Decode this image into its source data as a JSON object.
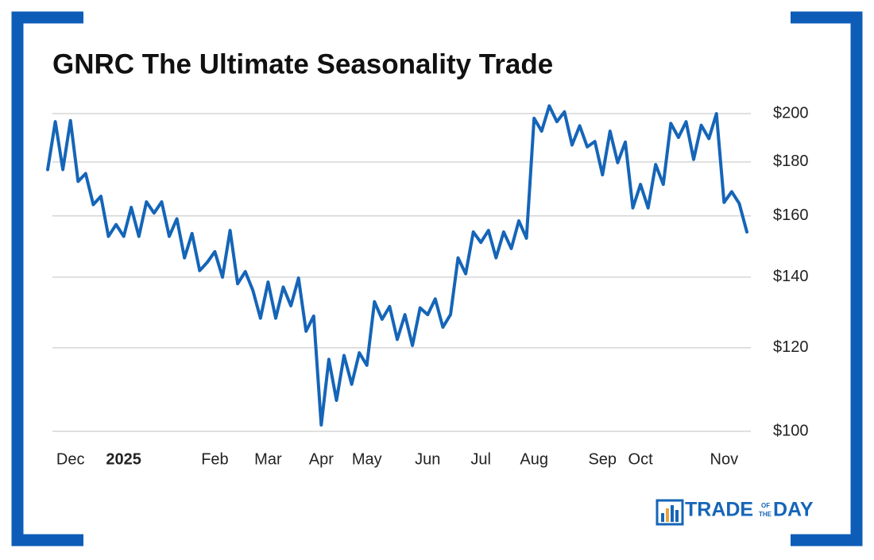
{
  "chart_data": {
    "type": "line",
    "title": "GNRC The Ultimate Seasonality Trade",
    "categories": [
      null,
      null,
      null,
      "Dec",
      null,
      null,
      null,
      null,
      null,
      null,
      "2025",
      null,
      null,
      null,
      null,
      null,
      null,
      null,
      null,
      null,
      null,
      null,
      "Feb",
      null,
      null,
      null,
      null,
      null,
      null,
      "Mar",
      null,
      null,
      null,
      null,
      null,
      null,
      "Apr",
      null,
      null,
      null,
      null,
      null,
      "May",
      null,
      null,
      null,
      null,
      null,
      null,
      null,
      "Jun",
      null,
      null,
      null,
      null,
      null,
      null,
      "Jul",
      null,
      null,
      null,
      null,
      null,
      null,
      "Aug",
      null,
      null,
      null,
      null,
      null,
      null,
      null,
      null,
      "Sep",
      null,
      null,
      null,
      null,
      "Oct",
      null,
      null,
      null,
      null,
      null,
      null,
      null,
      null,
      null,
      null,
      "Nov",
      null,
      null,
      null
    ],
    "values": [
      177,
      196.5,
      177,
      197,
      172.5,
      175.5,
      164,
      167,
      153,
      157,
      153,
      163,
      153,
      165,
      161,
      165,
      153,
      159,
      146,
      154,
      142,
      144.6,
      148,
      140,
      155,
      138,
      141.7,
      136,
      128,
      138.5,
      128,
      137,
      131.5,
      139.7,
      124.4,
      128.6,
      101.4,
      117,
      107,
      118,
      110.8,
      118.7,
      115.5,
      132.7,
      127.7,
      131.3,
      122.2,
      129,
      120.6,
      130.9,
      129,
      133.5,
      125.5,
      129,
      146,
      141,
      154.5,
      151,
      155,
      146,
      154.5,
      149,
      158.3,
      152.4,
      198,
      192.5,
      203.4,
      196.5,
      200.8,
      186.8,
      194.8,
      186,
      188.2,
      175,
      192.5,
      179.7,
      188,
      162.8,
      171.4,
      162.8,
      179,
      171.4,
      195.8,
      189.9,
      196.5,
      181,
      195,
      189.4,
      200,
      164.8,
      168.7,
      164.4,
      154.5
    ],
    "color": "#1565b8",
    "ylim": [
      100,
      206
    ],
    "yticks": [
      {
        "value": 100,
        "label": "$100"
      },
      {
        "value": 120,
        "label": "$120"
      },
      {
        "value": 140,
        "label": "$140"
      },
      {
        "value": 160,
        "label": "$160"
      },
      {
        "value": 180,
        "label": "$180"
      },
      {
        "value": 200,
        "label": "$200"
      }
    ],
    "log_scale": true,
    "grid": true
  },
  "logo": {
    "left": "TRADE",
    "top": "OF",
    "bottom": "THE",
    "right": "DAY"
  }
}
